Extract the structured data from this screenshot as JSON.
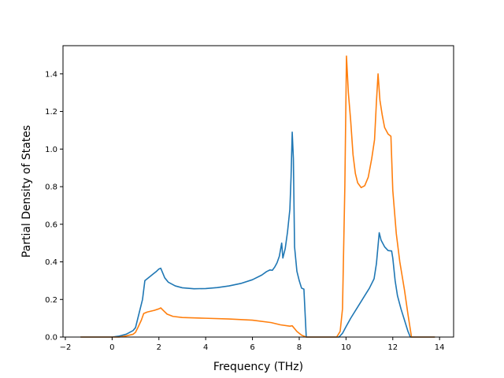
{
  "chart_data": {
    "type": "line",
    "title": "",
    "xlabel": "Frequency (THz)",
    "ylabel": "Partial Density of States",
    "xlim": [
      -2.1,
      14.6
    ],
    "ylim": [
      0.0,
      1.55
    ],
    "xticks": [
      -2,
      0,
      2,
      4,
      6,
      8,
      10,
      12,
      14
    ],
    "xtick_labels": [
      "−2",
      "0",
      "2",
      "4",
      "6",
      "8",
      "10",
      "12",
      "14"
    ],
    "yticks": [
      0.0,
      0.2,
      0.4,
      0.6,
      0.8,
      1.0,
      1.2,
      1.4
    ],
    "ytick_labels": [
      "0.0",
      "0.2",
      "0.4",
      "0.6",
      "0.8",
      "1.0",
      "1.2",
      "1.4"
    ],
    "grid": false,
    "series": [
      {
        "color": "#1f77b4",
        "points": [
          [
            -1.35,
            0.0
          ],
          [
            0.0,
            0.0
          ],
          [
            0.3,
            0.005
          ],
          [
            0.6,
            0.015
          ],
          [
            0.9,
            0.035
          ],
          [
            1.0,
            0.05
          ],
          [
            1.1,
            0.1
          ],
          [
            1.2,
            0.15
          ],
          [
            1.3,
            0.2
          ],
          [
            1.4,
            0.3
          ],
          [
            1.5,
            0.31
          ],
          [
            1.6,
            0.32
          ],
          [
            1.75,
            0.335
          ],
          [
            1.9,
            0.35
          ],
          [
            2.0,
            0.362
          ],
          [
            2.08,
            0.366
          ],
          [
            2.15,
            0.345
          ],
          [
            2.25,
            0.315
          ],
          [
            2.4,
            0.292
          ],
          [
            2.7,
            0.272
          ],
          [
            3.0,
            0.262
          ],
          [
            3.5,
            0.257
          ],
          [
            4.0,
            0.258
          ],
          [
            4.5,
            0.263
          ],
          [
            5.0,
            0.272
          ],
          [
            5.5,
            0.285
          ],
          [
            6.0,
            0.305
          ],
          [
            6.4,
            0.33
          ],
          [
            6.6,
            0.348
          ],
          [
            6.75,
            0.357
          ],
          [
            6.85,
            0.355
          ],
          [
            6.95,
            0.372
          ],
          [
            7.05,
            0.395
          ],
          [
            7.15,
            0.43
          ],
          [
            7.25,
            0.5
          ],
          [
            7.3,
            0.42
          ],
          [
            7.4,
            0.47
          ],
          [
            7.5,
            0.56
          ],
          [
            7.6,
            0.68
          ],
          [
            7.65,
            0.85
          ],
          [
            7.7,
            1.09
          ],
          [
            7.75,
            0.95
          ],
          [
            7.8,
            0.48
          ],
          [
            7.9,
            0.35
          ],
          [
            8.0,
            0.3
          ],
          [
            8.1,
            0.26
          ],
          [
            8.2,
            0.255
          ],
          [
            8.3,
            0.0
          ],
          [
            9.7,
            0.0
          ],
          [
            9.85,
            0.02
          ],
          [
            10.0,
            0.055
          ],
          [
            10.2,
            0.1
          ],
          [
            10.5,
            0.16
          ],
          [
            10.8,
            0.22
          ],
          [
            11.0,
            0.26
          ],
          [
            11.2,
            0.31
          ],
          [
            11.3,
            0.39
          ],
          [
            11.42,
            0.555
          ],
          [
            11.5,
            0.515
          ],
          [
            11.65,
            0.48
          ],
          [
            11.8,
            0.46
          ],
          [
            11.95,
            0.458
          ],
          [
            12.0,
            0.42
          ],
          [
            12.1,
            0.3
          ],
          [
            12.2,
            0.22
          ],
          [
            12.35,
            0.15
          ],
          [
            12.5,
            0.09
          ],
          [
            12.65,
            0.03
          ],
          [
            12.75,
            0.0
          ],
          [
            13.8,
            0.0
          ]
        ]
      },
      {
        "color": "#ff7f0e",
        "points": [
          [
            -1.35,
            0.0
          ],
          [
            0.3,
            0.0
          ],
          [
            0.6,
            0.006
          ],
          [
            0.9,
            0.015
          ],
          [
            1.0,
            0.025
          ],
          [
            1.1,
            0.05
          ],
          [
            1.25,
            0.09
          ],
          [
            1.35,
            0.125
          ],
          [
            1.5,
            0.133
          ],
          [
            1.8,
            0.142
          ],
          [
            2.0,
            0.15
          ],
          [
            2.08,
            0.155
          ],
          [
            2.2,
            0.14
          ],
          [
            2.35,
            0.122
          ],
          [
            2.6,
            0.11
          ],
          [
            3.0,
            0.104
          ],
          [
            4.0,
            0.1
          ],
          [
            5.0,
            0.096
          ],
          [
            6.0,
            0.09
          ],
          [
            6.8,
            0.077
          ],
          [
            7.2,
            0.065
          ],
          [
            7.6,
            0.058
          ],
          [
            7.7,
            0.06
          ],
          [
            7.9,
            0.03
          ],
          [
            8.1,
            0.01
          ],
          [
            8.3,
            0.0
          ],
          [
            9.6,
            0.0
          ],
          [
            9.75,
            0.03
          ],
          [
            9.85,
            0.15
          ],
          [
            9.95,
            0.8
          ],
          [
            10.02,
            1.495
          ],
          [
            10.1,
            1.3
          ],
          [
            10.2,
            1.15
          ],
          [
            10.3,
            0.97
          ],
          [
            10.4,
            0.87
          ],
          [
            10.5,
            0.82
          ],
          [
            10.65,
            0.795
          ],
          [
            10.8,
            0.805
          ],
          [
            10.95,
            0.85
          ],
          [
            11.1,
            0.95
          ],
          [
            11.22,
            1.05
          ],
          [
            11.3,
            1.25
          ],
          [
            11.37,
            1.4
          ],
          [
            11.45,
            1.26
          ],
          [
            11.55,
            1.18
          ],
          [
            11.65,
            1.115
          ],
          [
            11.8,
            1.08
          ],
          [
            11.92,
            1.068
          ],
          [
            12.0,
            0.78
          ],
          [
            12.15,
            0.55
          ],
          [
            12.3,
            0.4
          ],
          [
            12.5,
            0.25
          ],
          [
            12.65,
            0.12
          ],
          [
            12.8,
            0.0
          ],
          [
            13.8,
            0.0
          ]
        ]
      }
    ]
  }
}
